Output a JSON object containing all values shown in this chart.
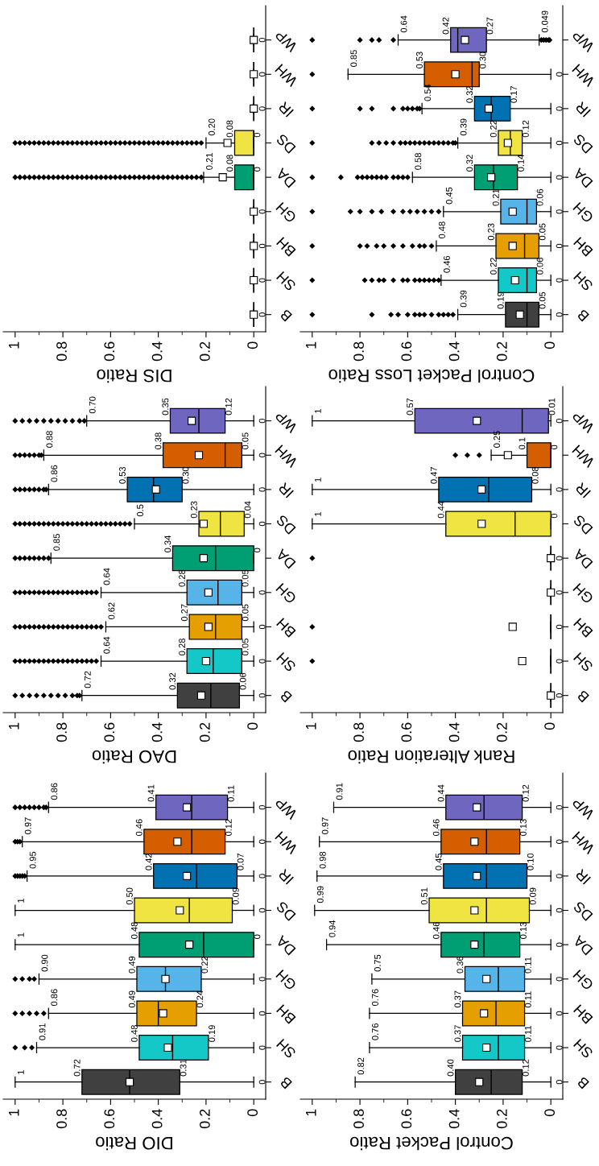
{
  "chart_data": [
    {
      "type": "box",
      "orientation": "horizontal",
      "xlabel": "DIS Ratio",
      "xlim": [
        1.05,
        -0.05
      ],
      "xticks": [
        1,
        {
          "value": 0.9,
          "label": null
        },
        0.8,
        {
          "value": 0.7,
          "label": null
        },
        0.6,
        {
          "value": 0.5,
          "label": null
        },
        0.4,
        {
          "value": 0.3,
          "label": null
        },
        0.2,
        {
          "value": 0.1,
          "label": null
        },
        0
      ],
      "categories": [
        "WP",
        "WH",
        "IR",
        "DS",
        "DA",
        "GH",
        "BH",
        "SH",
        "B"
      ],
      "colors": [
        null,
        null,
        null,
        "#f0e442",
        "#009e73",
        null,
        null,
        null,
        null
      ],
      "boxes": [
        {
          "low": 0,
          "q1": 0,
          "median": 0,
          "q3": 0,
          "high": 0,
          "mean": 0
        },
        {
          "low": 0,
          "q1": 0,
          "median": 0,
          "q3": 0,
          "high": 0,
          "mean": 0
        },
        {
          "low": 0,
          "q1": 0,
          "median": 0,
          "q3": 0,
          "high": 0,
          "mean": 0
        },
        {
          "low": 0,
          "q1": 0,
          "median": 0,
          "q3": 0.08,
          "high": 0.2,
          "mean": 0.11,
          "outliers": [
            0.22,
            0.24,
            0.26,
            0.28,
            0.3,
            0.32,
            0.34,
            0.36,
            0.38,
            0.4,
            0.42,
            0.44,
            0.46,
            0.48,
            0.5,
            0.52,
            0.54,
            0.56,
            0.58,
            0.6,
            0.62,
            0.64,
            0.66,
            0.68,
            0.7,
            0.72,
            0.74,
            0.76,
            0.78,
            0.8,
            0.82,
            0.84,
            0.86,
            0.88,
            0.9,
            0.92,
            0.94,
            0.96,
            0.98,
            1
          ]
        },
        {
          "low": 0,
          "q1": 0,
          "median": 0,
          "q3": 0.08,
          "high": 0.21,
          "mean": 0.13,
          "outliers": [
            0.22,
            0.24,
            0.26,
            0.28,
            0.3,
            0.32,
            0.34,
            0.36,
            0.38,
            0.4,
            0.42,
            0.44,
            0.46,
            0.48,
            0.5,
            0.52,
            0.54,
            0.56,
            0.58,
            0.6,
            0.62,
            0.64,
            0.66,
            0.68,
            0.7,
            0.72,
            0.74,
            0.76,
            0.78,
            0.8,
            0.82,
            0.84,
            0.86,
            0.88,
            0.9,
            0.92,
            0.94,
            0.96,
            0.98,
            1
          ]
        },
        {
          "low": 0,
          "q1": 0,
          "median": 0,
          "q3": 0,
          "high": 0,
          "mean": 0
        },
        {
          "low": 0,
          "q1": 0,
          "median": 0,
          "q3": 0,
          "high": 0,
          "mean": 0
        },
        {
          "low": 0,
          "q1": 0,
          "median": 0,
          "q3": 0,
          "high": 0,
          "mean": 0
        },
        {
          "low": 0,
          "q1": 0,
          "median": 0,
          "q3": 0,
          "high": 0,
          "mean": 0
        }
      ],
      "value_labels": [
        [
          null,
          null,
          null,
          "0"
        ],
        [
          null,
          null,
          null,
          "0"
        ],
        [
          null,
          null,
          null,
          "0"
        ],
        [
          "0.20",
          "0.08",
          "0",
          null
        ],
        [
          "0.21",
          "0.08",
          "0",
          null
        ],
        [
          null,
          null,
          null,
          "0"
        ],
        [
          null,
          null,
          null,
          "0"
        ],
        [
          null,
          null,
          null,
          "0"
        ],
        [
          null,
          null,
          null,
          "0"
        ]
      ]
    },
    {
      "type": "box",
      "orientation": "horizontal",
      "xlabel": "Control Packet Loss Ratio",
      "xlim": [
        1.05,
        -0.05
      ],
      "xticks": [
        1,
        {
          "value": 0.9,
          "label": null
        },
        0.8,
        {
          "value": 0.7,
          "label": null
        },
        0.6,
        {
          "value": 0.5,
          "label": null
        },
        0.4,
        {
          "value": 0.3,
          "label": null
        },
        0.2,
        {
          "value": 0.1,
          "label": null
        },
        0
      ],
      "categories": [
        "WP",
        "WH",
        "IR",
        "DS",
        "DA",
        "GH",
        "BH",
        "SH",
        "B"
      ],
      "colors": [
        "#6f67bf",
        "#d55e00",
        "#0072b2",
        "#f0e442",
        "#009e73",
        "#56b4e9",
        "#e69f00",
        "#15c8c8",
        "#404040"
      ],
      "boxes": [
        {
          "low": 0.049,
          "q1": 0.27,
          "median": 0.39,
          "q3": 0.42,
          "high": 0.64,
          "mean": 0.36,
          "outliers": [
            1,
            0.8,
            0.75,
            0.72,
            0.66,
            0.04,
            0.03,
            0.02,
            0.01,
            0.005
          ]
        },
        {
          "low": 0,
          "q1": 0.3,
          "median": 0.33,
          "q3": 0.53,
          "high": 0.85,
          "mean": 0.4,
          "outliers": [
            1
          ]
        },
        {
          "low": 0,
          "q1": 0.17,
          "median": 0.25,
          "q3": 0.32,
          "high": 0.54,
          "mean": 0.26,
          "outliers": [
            1,
            0.8,
            0.75,
            0.66,
            0.62,
            0.6,
            0.58,
            0.56,
            0.55
          ]
        },
        {
          "low": 0,
          "q1": 0.12,
          "median": 0.17,
          "q3": 0.22,
          "high": 0.39,
          "mean": 0.18,
          "outliers": [
            1,
            0.75,
            0.72,
            0.69,
            0.66,
            0.63,
            0.61,
            0.59,
            0.57,
            0.55,
            0.53,
            0.51,
            0.49,
            0.47,
            0.45,
            0.43,
            0.41,
            0.4
          ]
        },
        {
          "low": 0,
          "q1": 0.14,
          "median": 0.24,
          "q3": 0.32,
          "high": 0.58,
          "mean": 0.25,
          "outliers": [
            1,
            0.88,
            0.81,
            0.79,
            0.77,
            0.75,
            0.73,
            0.71,
            0.69,
            0.66,
            0.64,
            0.62,
            0.6
          ]
        },
        {
          "low": 0,
          "q1": 0.06,
          "median": 0.1,
          "q3": 0.21,
          "high": 0.45,
          "mean": 0.16,
          "outliers": [
            1,
            0.84,
            0.8,
            0.75,
            0.71,
            0.66,
            0.62,
            0.59,
            0.56,
            0.53,
            0.5,
            0.47
          ]
        },
        {
          "low": 0,
          "q1": 0.05,
          "median": 0.11,
          "q3": 0.23,
          "high": 0.48,
          "mean": 0.16,
          "outliers": [
            1,
            0.8,
            0.77,
            0.73,
            0.7,
            0.66,
            0.62,
            0.58,
            0.55,
            0.53,
            0.5
          ]
        },
        {
          "low": 0,
          "q1": 0.06,
          "median": 0.1,
          "q3": 0.22,
          "high": 0.46,
          "mean": 0.15,
          "outliers": [
            1,
            0.78,
            0.75,
            0.72,
            0.7,
            0.66,
            0.62,
            0.6,
            0.57,
            0.55,
            0.53,
            0.51,
            0.49,
            0.47
          ]
        },
        {
          "low": 0,
          "q1": 0.05,
          "median": 0.1,
          "q3": 0.19,
          "high": 0.39,
          "mean": 0.13,
          "outliers": [
            1,
            0.75,
            0.67,
            0.64,
            0.6,
            0.57,
            0.55,
            0.53,
            0.5,
            0.47,
            0.45,
            0.43,
            0.41
          ]
        }
      ],
      "value_labels": [
        [
          "0.64",
          "0.42",
          "0.27",
          "0.049"
        ],
        [
          "0.85",
          "0.53",
          "0.30",
          "0"
        ],
        [
          "0.54",
          "0.32",
          "0.17",
          "0"
        ],
        [
          "0.39",
          "0.22",
          "0.12",
          "0"
        ],
        [
          "0.58",
          "0.32",
          "0.14",
          "0"
        ],
        [
          "0.45",
          "0.21",
          "0.06",
          "0"
        ],
        [
          "0.48",
          "0.23",
          "0.05",
          "0"
        ],
        [
          "0.46",
          "0.22",
          "0.06",
          "0"
        ],
        [
          "0.39",
          "0.19",
          "0.05",
          "0"
        ]
      ]
    },
    {
      "type": "box",
      "orientation": "horizontal",
      "xlabel": "DAO Ratio",
      "xlim": [
        1.05,
        -0.05
      ],
      "xticks": [
        1,
        {
          "value": 0.9,
          "label": null
        },
        0.8,
        {
          "value": 0.7,
          "label": null
        },
        0.6,
        {
          "value": 0.5,
          "label": null
        },
        0.4,
        {
          "value": 0.3,
          "label": null
        },
        0.2,
        {
          "value": 0.1,
          "label": null
        },
        0
      ],
      "categories": [
        "WP",
        "WH",
        "IR",
        "DS",
        "DA",
        "GH",
        "BH",
        "SH",
        "B"
      ],
      "colors": [
        "#6f67bf",
        "#d55e00",
        "#0072b2",
        "#f0e442",
        "#009e73",
        "#56b4e9",
        "#e69f00",
        "#15c8c8",
        "#404040"
      ],
      "boxes": [
        {
          "low": 0,
          "q1": 0.12,
          "median": 0.23,
          "q3": 0.35,
          "high": 0.7,
          "mean": 0.26,
          "outliers": [
            1,
            0.97,
            0.94,
            0.91,
            0.88,
            0.85,
            0.82,
            0.79,
            0.76,
            0.73,
            0.71
          ]
        },
        {
          "low": 0,
          "q1": 0.05,
          "median": 0.12,
          "q3": 0.38,
          "high": 0.88,
          "mean": 0.23,
          "outliers": [
            1,
            0.98,
            0.96,
            0.94,
            0.92,
            0.9,
            0.89
          ]
        },
        {
          "low": 0,
          "q1": 0.3,
          "median": 0.42,
          "q3": 0.53,
          "high": 0.86,
          "mean": 0.41,
          "outliers": [
            1,
            0.98,
            0.96,
            0.94,
            0.92,
            0.9,
            0.88,
            0.87
          ]
        },
        {
          "low": 0,
          "q1": 0.04,
          "median": 0.14,
          "q3": 0.23,
          "high": 0.5,
          "mean": 0.21,
          "outliers": [
            0.52,
            0.54,
            0.56,
            0.58,
            0.6,
            0.62,
            0.64,
            0.66,
            0.68,
            0.7,
            0.72,
            0.74,
            0.76,
            0.78,
            0.8,
            0.82,
            0.84,
            0.86,
            0.88,
            0.9,
            0.92,
            0.94,
            0.96,
            0.98,
            1
          ]
        },
        {
          "low": 0,
          "q1": 0,
          "median": 0.16,
          "q3": 0.34,
          "high": 0.85,
          "mean": 0.21,
          "outliers": [
            1,
            0.98,
            0.96,
            0.94,
            0.92,
            0.9,
            0.88,
            0.86
          ]
        },
        {
          "low": 0,
          "q1": 0.05,
          "median": 0.15,
          "q3": 0.28,
          "high": 0.64,
          "mean": 0.19,
          "outliers": [
            0.66,
            0.68,
            0.7,
            0.72,
            0.74,
            0.76,
            0.78,
            0.8,
            0.82,
            0.84,
            0.86,
            0.88,
            0.9,
            0.92,
            0.94,
            0.96,
            0.98,
            1
          ]
        },
        {
          "low": 0,
          "q1": 0.05,
          "median": 0.16,
          "q3": 0.27,
          "high": 0.62,
          "mean": 0.19,
          "outliers": [
            0.64,
            0.66,
            0.68,
            0.7,
            0.72,
            0.74,
            0.76,
            0.78,
            0.8,
            0.82,
            0.84,
            0.86,
            0.88,
            0.9,
            0.92,
            0.94,
            0.96,
            0.98,
            1
          ]
        },
        {
          "low": 0,
          "q1": 0.05,
          "median": 0.17,
          "q3": 0.28,
          "high": 0.64,
          "mean": 0.2,
          "outliers": [
            0.66,
            0.68,
            0.7,
            0.72,
            0.74,
            0.76,
            0.78,
            0.8,
            0.82,
            0.84,
            0.86,
            0.88,
            0.9,
            0.92,
            0.94,
            0.96,
            0.98,
            1
          ]
        },
        {
          "low": 0,
          "q1": 0.06,
          "median": 0.18,
          "q3": 0.32,
          "high": 0.72,
          "mean": 0.22,
          "outliers": [
            1,
            0.97,
            0.94,
            0.91,
            0.88,
            0.85,
            0.82,
            0.79,
            0.76,
            0.74,
            0.73
          ]
        }
      ],
      "value_labels": [
        [
          "0.70",
          "0.35",
          "0.12",
          "0"
        ],
        [
          "0.88",
          "0.38",
          "0.05",
          "0"
        ],
        [
          "0.86",
          "0.53",
          "0.30",
          "0"
        ],
        [
          "0.5",
          "0.23",
          "0.04",
          "0"
        ],
        [
          "0.85",
          "0.34",
          "0",
          null
        ],
        [
          "0.64",
          "0.28",
          "0.05",
          "0"
        ],
        [
          "0.62",
          "0.27",
          "0.05",
          "0"
        ],
        [
          "0.64",
          "0.28",
          "0.05",
          "0"
        ],
        [
          "0.72",
          "0.32",
          "0.06",
          "0"
        ]
      ]
    },
    {
      "type": "box",
      "orientation": "horizontal",
      "xlabel": "Rank Alteration Ratio",
      "xlim": [
        1.05,
        -0.05
      ],
      "xticks": [
        1,
        {
          "value": 0.9,
          "label": null
        },
        0.8,
        {
          "value": 0.7,
          "label": null
        },
        0.6,
        {
          "value": 0.5,
          "label": null
        },
        0.4,
        {
          "value": 0.3,
          "label": null
        },
        0.2,
        {
          "value": 0.1,
          "label": null
        },
        0
      ],
      "categories": [
        "WP",
        "WH",
        "IR",
        "DS",
        "DA",
        "GH",
        "BH",
        "SH",
        "B"
      ],
      "colors": [
        "#6f67bf",
        "#d55e00",
        "#0072b2",
        "#f0e442",
        null,
        null,
        null,
        null,
        null
      ],
      "boxes": [
        {
          "low": 0,
          "q1": 0.01,
          "median": 0.12,
          "q3": 0.57,
          "high": 1,
          "mean": 0.31
        },
        {
          "low": 0,
          "q1": 0,
          "median": 0,
          "q3": 0.1,
          "high": 0.25,
          "mean": 0.18,
          "outliers": [
            0.4,
            0.35,
            0.3
          ]
        },
        {
          "low": 0,
          "q1": 0.08,
          "median": 0.26,
          "q3": 0.47,
          "high": 1,
          "mean": 0.29
        },
        {
          "low": 0,
          "q1": 0,
          "median": 0.15,
          "q3": 0.44,
          "high": 1,
          "mean": 0.29
        },
        {
          "low": 0,
          "q1": 0,
          "median": 0,
          "q3": 0,
          "high": 0,
          "mean": 0,
          "outliers": [
            1
          ]
        },
        {
          "low": 0,
          "q1": 0,
          "median": 0,
          "q3": 0,
          "high": 0,
          "mean": 0
        },
        {
          "low": 0,
          "q1": 0,
          "median": 0,
          "q3": 0,
          "high": 0,
          "mean": 0.16,
          "outliers": [
            1
          ]
        },
        {
          "low": 0,
          "q1": 0,
          "median": 0,
          "q3": 0,
          "high": 0,
          "mean": 0.12,
          "outliers": [
            1
          ]
        },
        {
          "low": 0,
          "q1": 0,
          "median": 0,
          "q3": 0,
          "high": 0,
          "mean": 0
        }
      ],
      "value_labels": [
        [
          "1",
          "0.57",
          "0.01",
          "0"
        ],
        [
          "0.25",
          "0.1",
          "0",
          null
        ],
        [
          "1",
          "0.47",
          "0.08",
          "0"
        ],
        [
          "1",
          "0.44",
          "0",
          null
        ],
        [
          null,
          null,
          null,
          "0"
        ],
        [
          null,
          null,
          null,
          "0"
        ],
        [
          null,
          null,
          null,
          "0"
        ],
        [
          null,
          null,
          null,
          "0"
        ],
        [
          null,
          null,
          null,
          "0"
        ]
      ]
    },
    {
      "type": "box",
      "orientation": "horizontal",
      "xlabel": "DIO Ratio",
      "xlim": [
        1.05,
        -0.05
      ],
      "xticks": [
        1,
        {
          "value": 0.9,
          "label": null
        },
        0.8,
        {
          "value": 0.7,
          "label": null
        },
        0.6,
        {
          "value": 0.5,
          "label": null
        },
        0.4,
        {
          "value": 0.3,
          "label": null
        },
        0.2,
        {
          "value": 0.1,
          "label": null
        },
        0
      ],
      "categories": [
        "WP",
        "WH",
        "IR",
        "DS",
        "DA",
        "GH",
        "BH",
        "SH",
        "B"
      ],
      "colors": [
        "#6f67bf",
        "#d55e00",
        "#0072b2",
        "#f0e442",
        "#009e73",
        "#56b4e9",
        "#e69f00",
        "#15c8c8",
        "#404040"
      ],
      "boxes": [
        {
          "low": 0,
          "q1": 0.11,
          "median": 0.26,
          "q3": 0.41,
          "high": 0.86,
          "mean": 0.28,
          "outliers": [
            1,
            0.98,
            0.96,
            0.94,
            0.92,
            0.9,
            0.88,
            0.87
          ]
        },
        {
          "low": 0,
          "q1": 0.12,
          "median": 0.26,
          "q3": 0.46,
          "high": 0.97,
          "mean": 0.32,
          "outliers": [
            1,
            0.99,
            0.98
          ]
        },
        {
          "low": 0,
          "q1": 0.07,
          "median": 0.24,
          "q3": 0.42,
          "high": 0.95,
          "mean": 0.28,
          "outliers": [
            1,
            0.99,
            0.98,
            0.97,
            0.96
          ]
        },
        {
          "low": 0,
          "q1": 0.09,
          "median": 0.27,
          "q3": 0.5,
          "high": 1,
          "mean": 0.31
        },
        {
          "low": 0,
          "q1": 0,
          "median": 0.21,
          "q3": 0.48,
          "high": 1,
          "mean": 0.27
        },
        {
          "low": 0,
          "q1": 0.22,
          "median": 0.37,
          "q3": 0.49,
          "high": 0.9,
          "mean": 0.37,
          "outliers": [
            1,
            0.97,
            0.94,
            0.92
          ]
        },
        {
          "low": 0,
          "q1": 0.24,
          "median": 0.4,
          "q3": 0.49,
          "high": 0.86,
          "mean": 0.38,
          "outliers": [
            1,
            0.97,
            0.94,
            0.91,
            0.88
          ]
        },
        {
          "low": 0,
          "q1": 0.19,
          "median": 0.34,
          "q3": 0.48,
          "high": 0.91,
          "mean": 0.36,
          "outliers": [
            1,
            0.96,
            0.93
          ]
        },
        {
          "low": 0,
          "q1": 0.31,
          "median": 0.52,
          "q3": 0.72,
          "high": 1,
          "mean": 0.52
        }
      ],
      "value_labels": [
        [
          "0.86",
          "0.41",
          "0.11",
          "0"
        ],
        [
          "0.97",
          "0.46",
          "0.12",
          "0"
        ],
        [
          "0.95",
          "0.42",
          "0.07",
          "0"
        ],
        [
          "1",
          "0.50",
          "0.09",
          "0"
        ],
        [
          "1",
          "0.48",
          "0",
          null
        ],
        [
          "0.90",
          "0.49",
          "0.22",
          "0"
        ],
        [
          "0.86",
          "0.49",
          "0.24",
          "0"
        ],
        [
          "0.91",
          "0.48",
          "0.19",
          "0"
        ],
        [
          "1",
          "0.72",
          "0.31",
          "0"
        ]
      ]
    },
    {
      "type": "box",
      "orientation": "horizontal",
      "xlabel": "Control Packet Ratio",
      "xlim": [
        1.05,
        -0.05
      ],
      "xticks": [
        1,
        {
          "value": 0.9,
          "label": null
        },
        0.8,
        {
          "value": 0.7,
          "label": null
        },
        0.6,
        {
          "value": 0.5,
          "label": null
        },
        0.4,
        {
          "value": 0.3,
          "label": null
        },
        0.2,
        {
          "value": 0.1,
          "label": null
        },
        0
      ],
      "categories": [
        "WP",
        "WH",
        "IR",
        "DS",
        "DA",
        "GH",
        "BH",
        "SH",
        "B"
      ],
      "colors": [
        "#6f67bf",
        "#d55e00",
        "#0072b2",
        "#f0e442",
        "#009e73",
        "#56b4e9",
        "#e69f00",
        "#15c8c8",
        "#404040"
      ],
      "boxes": [
        {
          "low": 0,
          "q1": 0.12,
          "median": 0.28,
          "q3": 0.44,
          "high": 0.91,
          "mean": 0.31
        },
        {
          "low": 0,
          "q1": 0.13,
          "median": 0.27,
          "q3": 0.46,
          "high": 0.97,
          "mean": 0.32
        },
        {
          "low": 0,
          "q1": 0.1,
          "median": 0.27,
          "q3": 0.45,
          "high": 0.98,
          "mean": 0.31
        },
        {
          "low": 0,
          "q1": 0.09,
          "median": 0.27,
          "q3": 0.51,
          "high": 0.99,
          "mean": 0.32
        },
        {
          "low": 0,
          "q1": 0.13,
          "median": 0.28,
          "q3": 0.46,
          "high": 0.94,
          "mean": 0.32
        },
        {
          "low": 0,
          "q1": 0.11,
          "median": 0.22,
          "q3": 0.36,
          "high": 0.75,
          "mean": 0.27
        },
        {
          "low": 0,
          "q1": 0.11,
          "median": 0.23,
          "q3": 0.37,
          "high": 0.76,
          "mean": 0.28
        },
        {
          "low": 0,
          "q1": 0.11,
          "median": 0.22,
          "q3": 0.37,
          "high": 0.76,
          "mean": 0.27
        },
        {
          "low": 0,
          "q1": 0.12,
          "median": 0.25,
          "q3": 0.4,
          "high": 0.82,
          "mean": 0.3
        }
      ],
      "value_labels": [
        [
          "0.91",
          "0.44",
          "0.12",
          "0"
        ],
        [
          "0.97",
          "0.46",
          "0.13",
          "0"
        ],
        [
          "0.98",
          "0.45",
          "0.10",
          "0"
        ],
        [
          "0.99",
          "0.51",
          "0.09",
          "0"
        ],
        [
          "0.94",
          "0.46",
          "0.13",
          "0"
        ],
        [
          "0.75",
          "0.36",
          "0.11",
          "0"
        ],
        [
          "0.76",
          "0.37",
          "0.11",
          "0"
        ],
        [
          "0.76",
          "0.37",
          "0.11",
          "0"
        ],
        [
          "0.82",
          "0.40",
          "0.12",
          "0"
        ]
      ]
    }
  ]
}
